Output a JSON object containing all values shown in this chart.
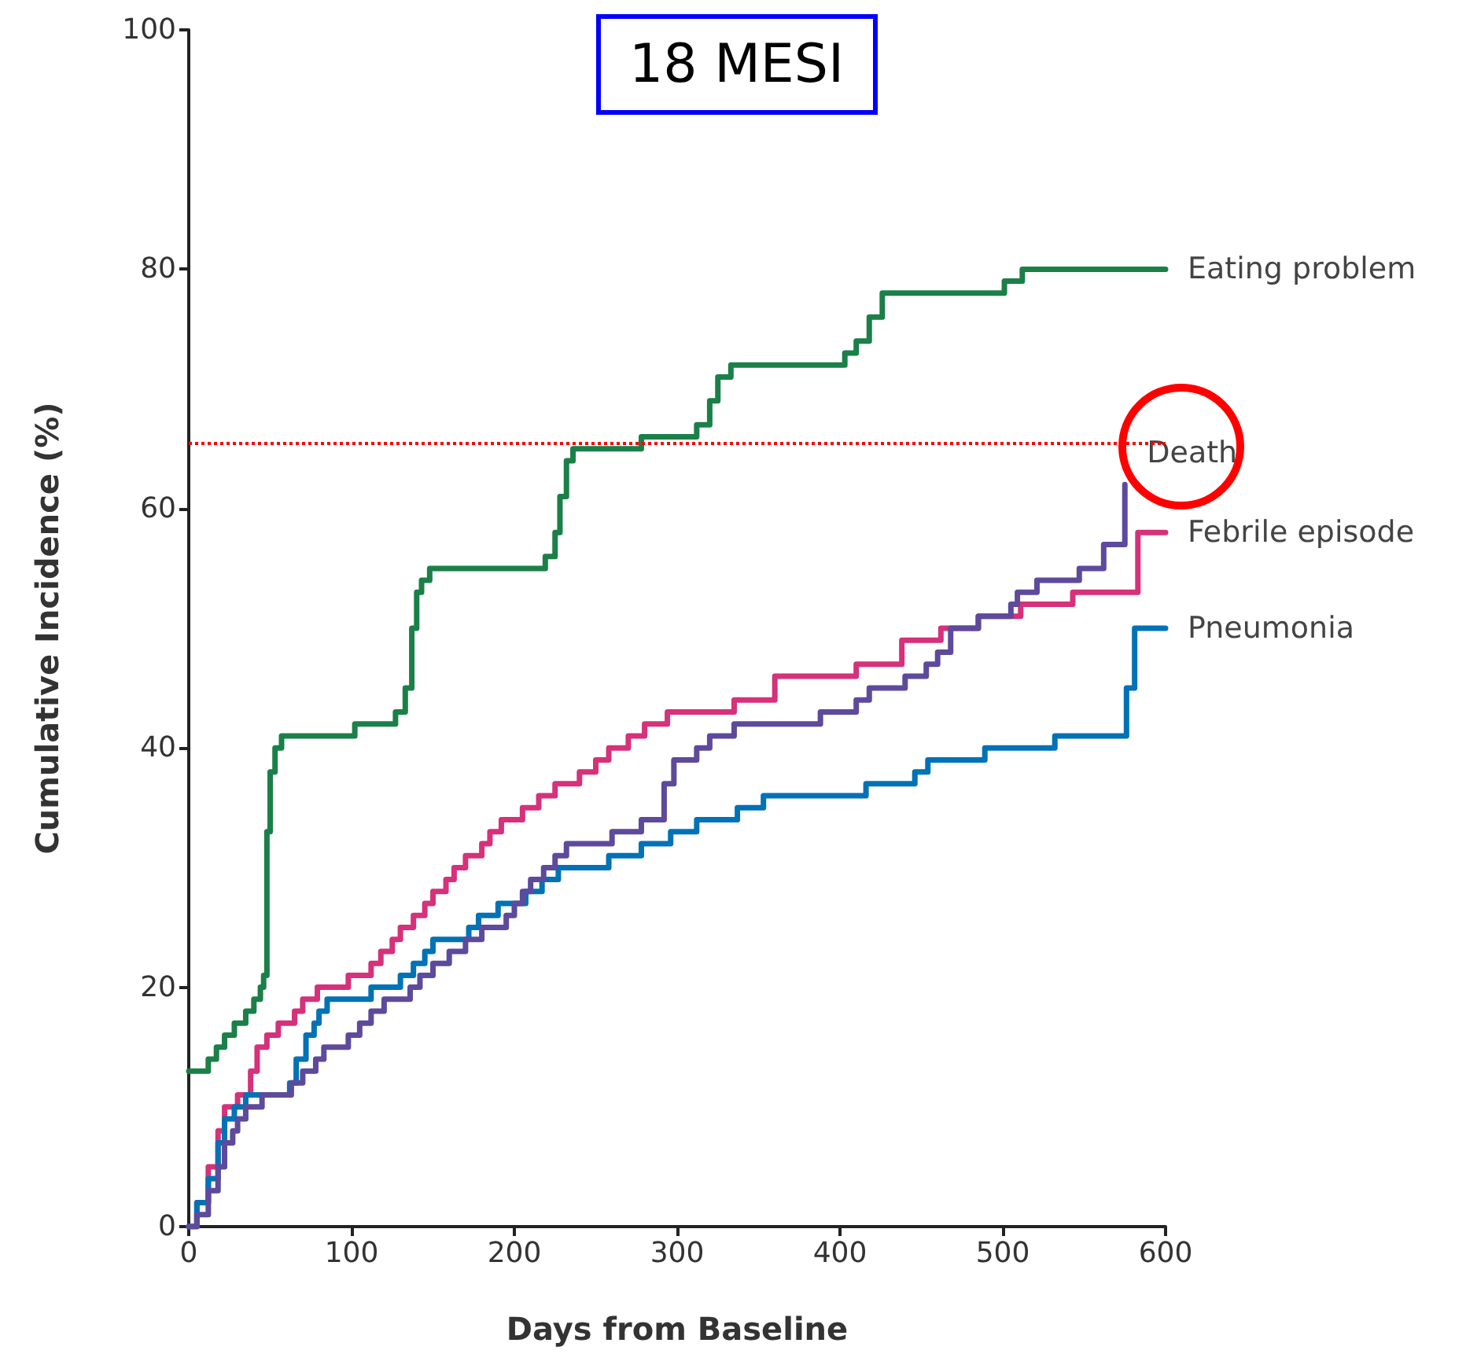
{
  "chart_data": {
    "type": "step",
    "title": "18 MESI",
    "xlabel": "Days from Baseline",
    "ylabel": "Cumulative Incidence (%)",
    "xlim": [
      0,
      600
    ],
    "xticks": [
      0,
      100,
      200,
      300,
      400,
      500,
      600
    ],
    "ylim": [
      0,
      100
    ],
    "yticks": [
      0,
      20,
      40,
      60,
      80,
      100
    ],
    "grid": false,
    "legend": false,
    "marker": "none",
    "line_style": "solid",
    "ref_lines": [
      {
        "axis": "y",
        "value": 65.5,
        "color": "#ff0000",
        "line_style": "dotted"
      }
    ],
    "series": [
      {
        "name": "Eating problem",
        "color": "#1a8048",
        "x": [
          0,
          12,
          17,
          22,
          28,
          35,
          40,
          44,
          46,
          48,
          50,
          53,
          57,
          102,
          127,
          133,
          137,
          140,
          143,
          148,
          154,
          219,
          225,
          228,
          232,
          236,
          243,
          278,
          312,
          320,
          325,
          333,
          403,
          410,
          418,
          426,
          501,
          512,
          600
        ],
        "values": [
          13,
          14,
          15,
          16,
          17,
          18,
          19,
          20,
          21,
          33,
          38,
          40,
          41,
          42,
          43,
          45,
          50,
          53,
          54,
          55,
          55,
          56,
          58,
          61,
          64,
          65,
          65,
          66,
          67,
          69,
          71,
          72,
          73,
          74,
          76,
          78,
          79,
          80,
          80
        ]
      },
      {
        "name": "Febrile episode",
        "color": "#d6317a",
        "x": [
          0,
          5,
          12,
          18,
          22,
          30,
          38,
          42,
          48,
          55,
          65,
          70,
          79,
          98,
          112,
          118,
          125,
          130,
          138,
          145,
          150,
          158,
          163,
          170,
          180,
          185,
          192,
          205,
          215,
          225,
          240,
          250,
          258,
          270,
          280,
          294,
          335,
          360,
          410,
          438,
          462,
          485,
          511,
          543,
          583,
          600
        ],
        "values": [
          0,
          2,
          5,
          8,
          10,
          11,
          13,
          15,
          16,
          17,
          18,
          19,
          20,
          21,
          22,
          23,
          24,
          25,
          26,
          27,
          28,
          29,
          30,
          31,
          32,
          33,
          34,
          35,
          36,
          37,
          38,
          39,
          40,
          41,
          42,
          43,
          44,
          46,
          47,
          49,
          50,
          51,
          52,
          53,
          58,
          58
        ]
      },
      {
        "name": "Pneumonia",
        "color": "#0072b5",
        "x": [
          0,
          5,
          12,
          18,
          22,
          28,
          35,
          62,
          66,
          72,
          77,
          80,
          85,
          112,
          130,
          138,
          145,
          150,
          172,
          178,
          190,
          207,
          217,
          227,
          258,
          278,
          296,
          312,
          337,
          353,
          416,
          446,
          454,
          489,
          532,
          576,
          581,
          600
        ],
        "values": [
          0,
          2,
          4,
          7,
          9,
          10,
          11,
          12,
          14,
          16,
          17,
          18,
          19,
          20,
          21,
          22,
          23,
          24,
          25,
          26,
          27,
          28,
          29,
          30,
          31,
          32,
          33,
          34,
          35,
          36,
          37,
          38,
          39,
          40,
          41,
          45,
          50,
          50
        ]
      },
      {
        "name": "Death",
        "color": "#5e4a9c",
        "x": [
          0,
          5,
          12,
          18,
          22,
          27,
          30,
          35,
          45,
          63,
          70,
          78,
          83,
          98,
          105,
          112,
          120,
          136,
          142,
          150,
          160,
          170,
          180,
          195,
          200,
          205,
          210,
          218,
          225,
          232,
          260,
          278,
          292,
          298,
          312,
          320,
          335,
          388,
          410,
          418,
          440,
          453,
          460,
          468,
          485,
          505,
          509,
          521,
          547,
          562,
          575
        ],
        "values": [
          0,
          1,
          3,
          5,
          7,
          8,
          9,
          10,
          11,
          12,
          13,
          14,
          15,
          16,
          17,
          18,
          19,
          20,
          21,
          22,
          23,
          24,
          25,
          26,
          27,
          28,
          29,
          30,
          31,
          32,
          33,
          34,
          37,
          39,
          40,
          41,
          42,
          43,
          44,
          45,
          46,
          47,
          48,
          50,
          51,
          52,
          53,
          54,
          55,
          57,
          62
        ]
      }
    ]
  }
}
